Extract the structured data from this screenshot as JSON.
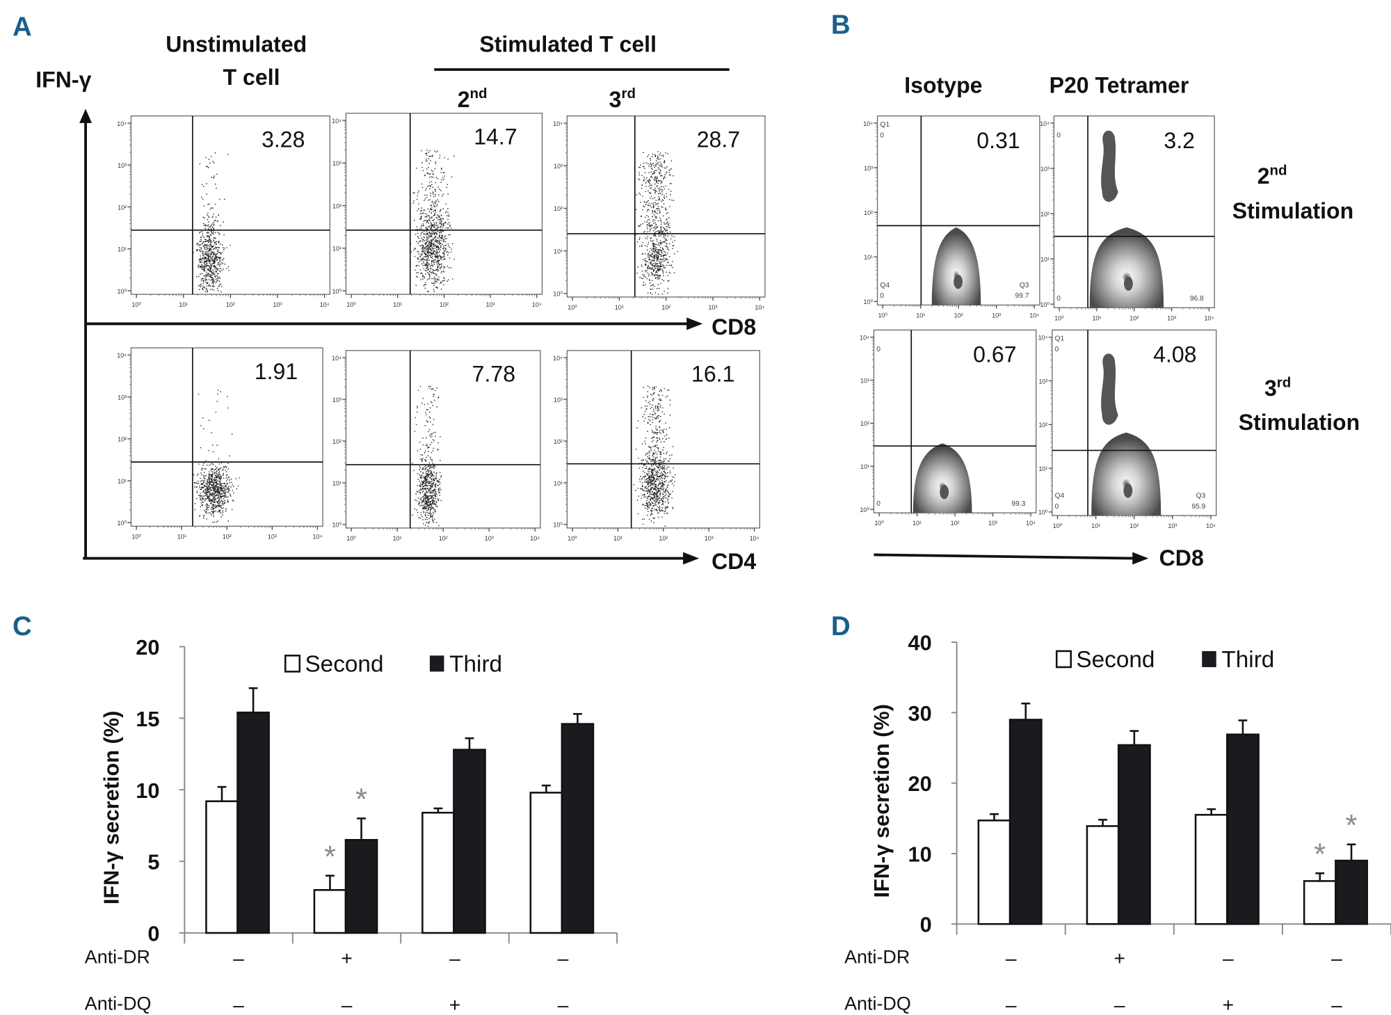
{
  "panels": {
    "a": {
      "letter": "A",
      "y_axis_label": "IFN-γ",
      "col_unstim_1": "Unstimulated",
      "col_unstim_2": "T cell",
      "col_stim": "Stimulated T cell",
      "col_2nd": "2",
      "col_2nd_sup": "nd",
      "col_3rd": "3",
      "col_3rd_sup": "rd",
      "row1_axis": "CD8",
      "row2_axis": "CD4",
      "tick_labels": [
        "10⁰",
        "10¹",
        "10²",
        "10³",
        "10⁴"
      ],
      "values": [
        "3.28",
        "14.7",
        "28.7",
        "1.91",
        "7.78",
        "16.1"
      ]
    },
    "b": {
      "letter": "B",
      "col_isotype": "Isotype",
      "col_tetramer": "P20 Tetramer",
      "row1_label_num": "2",
      "row1_label_sup": "nd",
      "row1_label_word": "Stimulation",
      "row2_label_num": "3",
      "row2_label_sup": "rd",
      "row2_label_word": "Stimulation",
      "x_axis": "CD8",
      "values": [
        "0.31",
        "3.2",
        "0.67",
        "4.08"
      ],
      "quadrant_text": [
        {
          "tl_name": "Q1",
          "tl": "0",
          "bl_name": "Q4",
          "bl": "0",
          "br_name": "Q3",
          "br": "99.7"
        },
        {
          "tl_name": "",
          "tl": "0",
          "bl_name": "",
          "bl": "0",
          "br_name": "",
          "br": "96.8"
        },
        {
          "tl_name": "",
          "tl": "0",
          "bl_name": "",
          "bl": "0",
          "br_name": "",
          "br": "99.3"
        },
        {
          "tl_name": "Q1",
          "tl": "0",
          "bl_name": "Q4",
          "bl": "0",
          "br_name": "Q3",
          "br": "95.9"
        }
      ]
    },
    "c": {
      "letter": "C"
    },
    "d": {
      "letter": "D"
    }
  },
  "colors": {
    "panel_letter": "#1b5e8c",
    "second": "#ffffff",
    "third": "#1c1a1e",
    "asterisk": "#8a8a8a"
  },
  "chart_data": [
    {
      "type": "bar",
      "panel": "C",
      "ylabel": "IFN-γ secretion (%)",
      "ylim": [
        0,
        20
      ],
      "yticks": [
        "0",
        "5",
        "10",
        "15",
        "20"
      ],
      "legend_position": "top",
      "conditions": {
        "row_labels": [
          "Anti-DR",
          "Anti-DQ"
        ],
        "anti_dr": [
          "–",
          "+",
          "–",
          "–"
        ],
        "anti_dq": [
          "–",
          "–",
          "+",
          "–"
        ]
      },
      "series": [
        {
          "name": "Second",
          "values": [
            9.2,
            3.0,
            8.4,
            9.8
          ],
          "errors": [
            1.0,
            1.0,
            0.3,
            0.5
          ],
          "significant": [
            false,
            true,
            false,
            false
          ]
        },
        {
          "name": "Third",
          "values": [
            15.4,
            6.5,
            12.8,
            14.6
          ],
          "errors": [
            1.7,
            1.5,
            0.8,
            0.7
          ],
          "significant": [
            false,
            true,
            false,
            false
          ]
        }
      ],
      "asterisk": "*"
    },
    {
      "type": "bar",
      "panel": "D",
      "ylabel": "IFN-γ secretion (%)",
      "ylim": [
        0,
        40
      ],
      "yticks": [
        "0",
        "10",
        "20",
        "30",
        "40"
      ],
      "legend_position": "top",
      "conditions": {
        "row_labels": [
          "Anti-DR",
          "Anti-DQ"
        ],
        "anti_dr": [
          "–",
          "+",
          "–",
          "–"
        ],
        "anti_dq": [
          "–",
          "–",
          "+",
          "–"
        ]
      },
      "series": [
        {
          "name": "Second",
          "values": [
            14.7,
            13.9,
            15.5,
            6.1
          ],
          "errors": [
            0.9,
            0.9,
            0.8,
            1.1
          ],
          "significant": [
            false,
            false,
            false,
            true
          ]
        },
        {
          "name": "Third",
          "values": [
            29.0,
            25.4,
            26.9,
            9.0
          ],
          "errors": [
            2.3,
            2.0,
            2.0,
            2.3
          ],
          "significant": [
            false,
            false,
            false,
            true
          ]
        }
      ],
      "asterisk": "*"
    }
  ]
}
